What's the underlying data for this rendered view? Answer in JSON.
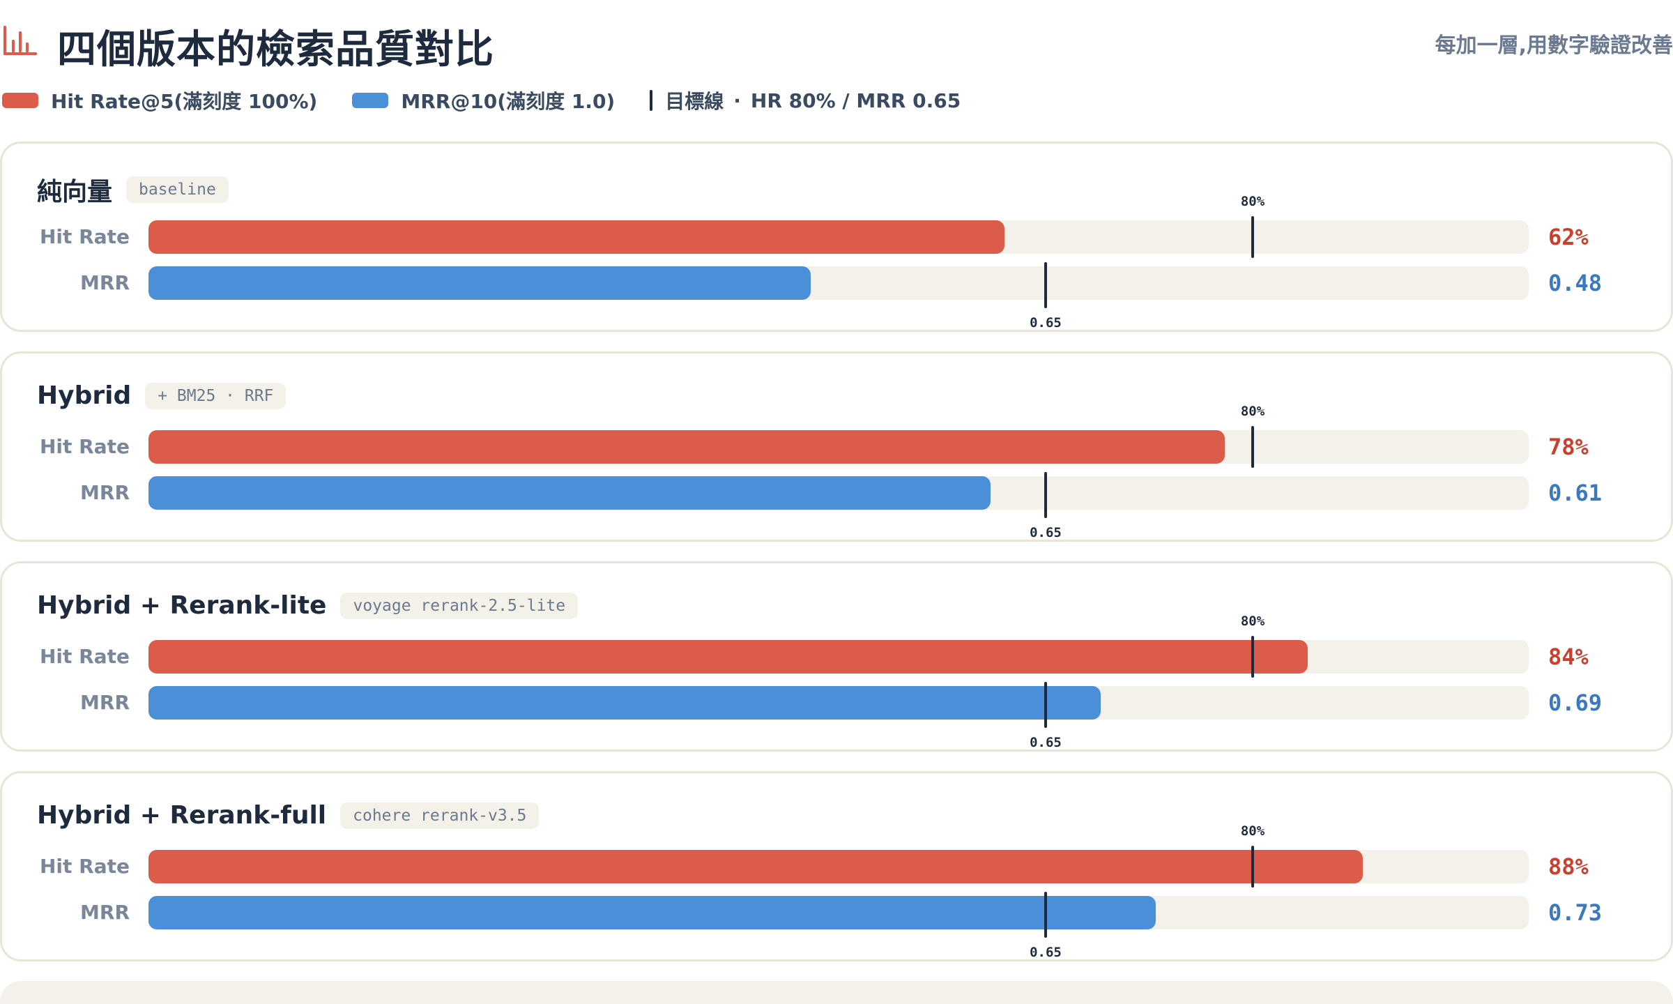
{
  "header": {
    "title": "四個版本的檢索品質對比",
    "subtitle": "每加一層,用數字驗證改善",
    "icon": "bar-chart-icon",
    "accent": "#db5c4a"
  },
  "legend": {
    "hit_rate": "Hit Rate@5(滿刻度 100%)",
    "mrr": "MRR@10(滿刻度 1.0)",
    "target_name": "目標線",
    "target_sep": "·",
    "target_values": "HR 80% / MRR 0.65"
  },
  "colors": {
    "hit_rate": "#db5c4a",
    "mrr": "#4a8fd8",
    "target": "#1e2a3e"
  },
  "row_labels": {
    "hit_rate": "Hit Rate",
    "mrr": "MRR"
  },
  "chart_data": {
    "type": "bar",
    "orientation": "horizontal",
    "title": "四個版本的檢索品質對比",
    "subtitle": "每加一層,用數字驗證改善",
    "categories": [
      "純向量",
      "Hybrid",
      "Hybrid + Rerank-lite",
      "Hybrid + Rerank-full"
    ],
    "tags": [
      "baseline",
      "+ BM25 · RRF",
      "voyage rerank-2.5-lite",
      "cohere rerank-v3.5"
    ],
    "series": [
      {
        "name": "Hit Rate@5(滿刻度 100%)",
        "values": [
          62,
          78,
          84,
          88
        ],
        "labels": [
          "62%",
          "78%",
          "84%",
          "88%"
        ],
        "scale_max": 100,
        "target": 80,
        "target_label": "80%"
      },
      {
        "name": "MRR@10(滿刻度 1.0)",
        "values": [
          0.48,
          0.61,
          0.69,
          0.73
        ],
        "labels": [
          "0.48",
          "0.61",
          "0.69",
          "0.73"
        ],
        "scale_max": 1.0,
        "target": 0.65,
        "target_label": "0.65"
      }
    ],
    "legend": "top-left",
    "grid": false
  }
}
